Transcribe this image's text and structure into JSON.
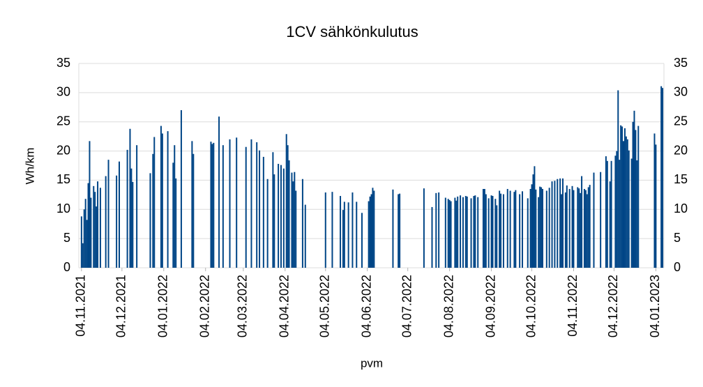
{
  "chart_data": {
    "type": "bar",
    "title": "1CV sähkönkulutus",
    "x_label": "pvm",
    "y_label": "Wh/km",
    "color": "#004586",
    "grid": true,
    "x": [
      "04.11.2021",
      "05.11.2021",
      "06.11.2021",
      "07.11.2021",
      "08.11.2021",
      "09.11.2021",
      "10.11.2021",
      "11.11.2021",
      "13.11.2021",
      "14.11.2021",
      "15.11.2021",
      "16.11.2021",
      "18.11.2021",
      "22.11.2021",
      "24.11.2021",
      "30.11.2021",
      "02.12.2021",
      "08.12.2021",
      "10.12.2021",
      "11.12.2021",
      "12.12.2021",
      "15.12.2021",
      "25.12.2021",
      "27.12.2021",
      "28.12.2021",
      "02.01.2022",
      "03.01.2022",
      "07.01.2022",
      "11.01.2022",
      "12.01.2022",
      "13.01.2022",
      "17.01.2022",
      "25.01.2022",
      "26.01.2022",
      "08.02.2022",
      "09.02.2022",
      "10.02.2022",
      "14.02.2022",
      "17.02.2022",
      "22.02.2022",
      "27.02.2022",
      "06.03.2022",
      "10.03.2022",
      "14.03.2022",
      "16.03.2022",
      "19.03.2022",
      "22.03.2022",
      "26.03.2022",
      "27.03.2022",
      "30.03.2022",
      "01.04.2022",
      "03.04.2022",
      "05.04.2022",
      "06.04.2022",
      "07.04.2022",
      "09.04.2022",
      "10.04.2022",
      "11.04.2022",
      "12.04.2022",
      "17.04.2022",
      "19.04.2022",
      "04.05.2022",
      "09.05.2022",
      "15.05.2022",
      "17.05.2022",
      "18.05.2022",
      "21.05.2022",
      "24.05.2022",
      "27.05.2022",
      "31.05.2022",
      "05.06.2022",
      "06.06.2022",
      "07.06.2022",
      "08.06.2022",
      "09.06.2022",
      "23.06.2022",
      "27.06.2022",
      "28.06.2022",
      "16.07.2022",
      "22.07.2022",
      "25.07.2022",
      "27.07.2022",
      "01.08.2022",
      "03.08.2022",
      "04.08.2022",
      "05.08.2022",
      "08.08.2022",
      "09.08.2022",
      "10.08.2022",
      "12.08.2022",
      "14.08.2022",
      "16.08.2022",
      "17.08.2022",
      "20.08.2022",
      "22.08.2022",
      "23.08.2022",
      "25.08.2022",
      "29.08.2022",
      "30.08.2022",
      "31.08.2022",
      "02.09.2022",
      "04.09.2022",
      "05.09.2022",
      "07.09.2022",
      "08.09.2022",
      "10.09.2022",
      "11.09.2022",
      "13.09.2022",
      "16.09.2022",
      "18.09.2022",
      "21.09.2022",
      "22.09.2022",
      "25.09.2022",
      "27.09.2022",
      "01.10.2022",
      "03.10.2022",
      "04.10.2022",
      "05.10.2022",
      "06.10.2022",
      "07.10.2022",
      "09.10.2022",
      "10.10.2022",
      "11.10.2022",
      "12.10.2022",
      "15.10.2022",
      "17.10.2022",
      "19.10.2022",
      "21.10.2022",
      "23.10.2022",
      "25.10.2022",
      "26.10.2022",
      "27.10.2022",
      "29.10.2022",
      "30.10.2022",
      "01.11.2022",
      "03.11.2022",
      "04.11.2022",
      "07.11.2022",
      "08.11.2022",
      "09.11.2022",
      "10.11.2022",
      "12.11.2022",
      "13.11.2022",
      "14.11.2022",
      "15.11.2022",
      "16.11.2022",
      "19.11.2022",
      "24.11.2022",
      "28.11.2022",
      "29.11.2022",
      "01.12.2022",
      "02.12.2022",
      "05.12.2022",
      "06.12.2022",
      "07.12.2022",
      "08.12.2022",
      "09.12.2022",
      "10.12.2022",
      "11.12.2022",
      "12.12.2022",
      "13.12.2022",
      "14.12.2022",
      "15.12.2022",
      "17.12.2022",
      "18.12.2022",
      "19.12.2022",
      "20.12.2022",
      "21.12.2022",
      "22.12.2022",
      "03.01.2023",
      "04.01.2023",
      "08.01.2023",
      "09.01.2023"
    ],
    "values": [
      8.8,
      4.2,
      10,
      11.8,
      8.2,
      14.5,
      21.7,
      12.0,
      14.0,
      13.0,
      10.5,
      14.8,
      13.7,
      15.7,
      18.5,
      15.8,
      18.2,
      20.2,
      23.8,
      17.0,
      14.7,
      21.0,
      16.2,
      19.5,
      22.4,
      24.3,
      23.0,
      23.4,
      18.0,
      21.0,
      15.3,
      27.0,
      21.7,
      19.5,
      21.6,
      21.2,
      21.4,
      25.9,
      21.0,
      22.0,
      22.3,
      20.7,
      22.0,
      21.5,
      20.1,
      19.0,
      15.2,
      19.8,
      16.0,
      17.8,
      17.6,
      17.0,
      22.9,
      21.0,
      18.4,
      16.3,
      14.8,
      16.4,
      13.2,
      15.2,
      10.8,
      12.9,
      13.0,
      12.3,
      9.9,
      11.3,
      11.2,
      12.9,
      11.3,
      9.4,
      11.4,
      12.2,
      12.6,
      13.7,
      13.2,
      13.4,
      12.6,
      12.7,
      13.6,
      10.4,
      12.8,
      12.9,
      12.0,
      11.8,
      11.6,
      11.4,
      12.0,
      11.5,
      12.2,
      12.4,
      12.1,
      12.3,
      12.2,
      11.9,
      12.3,
      12.4,
      12.1,
      13.5,
      13.5,
      12.6,
      11.9,
      12.4,
      12.3,
      11.8,
      10.7,
      13.2,
      12.7,
      12.6,
      13.5,
      13.2,
      13.0,
      13.3,
      12.6,
      13.1,
      11.9,
      13.5,
      14.3,
      16.0,
      17.4,
      13.4,
      12.1,
      13.9,
      13.8,
      13.5,
      13.2,
      13.7,
      14.8,
      14.9,
      15.2,
      15.3,
      12.6,
      15.3,
      12.9,
      14.1,
      13.5,
      14.0,
      13.3,
      13.8,
      13.6,
      12.8,
      15.7,
      13.5,
      13.3,
      12.6,
      13.8,
      14.2,
      16.3,
      16.4,
      19.1,
      18.3,
      14.8,
      18.3,
      19.2,
      20.0,
      30.4,
      18.5,
      24.4,
      24.2,
      21.7,
      23.9,
      22.5,
      22.0,
      20.1,
      18.7,
      25.0,
      26.9,
      23.6,
      18.4,
      24.3,
      23.0,
      21.1,
      31.1,
      30.8
    ],
    "xlim": [
      "02.11.2021",
      "10.01.2023"
    ],
    "xticks": [
      "04.11.2021",
      "04.12.2021",
      "04.01.2022",
      "04.02.2022",
      "04.03.2022",
      "04.04.2022",
      "04.05.2022",
      "04.06.2022",
      "04.07.2022",
      "04.08.2022",
      "04.09.2022",
      "04.10.2022",
      "04.11.2022",
      "04.12.2022",
      "04.01.2023"
    ],
    "ylim": [
      0,
      35
    ],
    "yticks": [
      0,
      5,
      10,
      15,
      20,
      25,
      30,
      35
    ],
    "y2lim": [
      0,
      35
    ],
    "y2ticks": [
      0,
      5,
      10,
      15,
      20,
      25,
      30,
      35
    ]
  }
}
